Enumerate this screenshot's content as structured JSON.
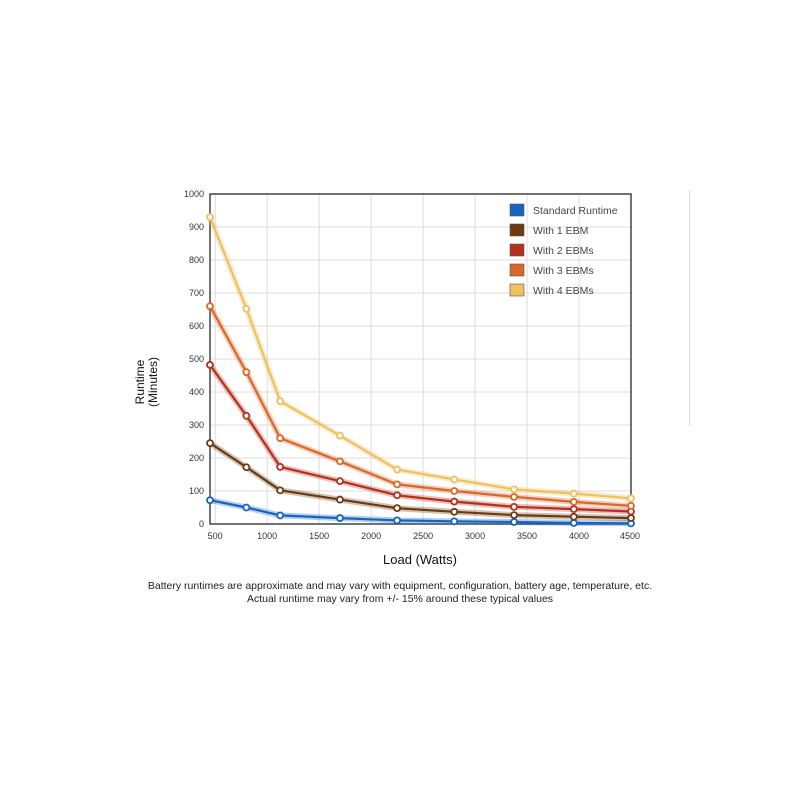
{
  "chart_data": {
    "type": "line",
    "title": "",
    "xlabel": "Load (Watts)",
    "ylabel_lines": [
      "Runtime",
      "(Minutes)"
    ],
    "xlim": [
      450,
      4500
    ],
    "ylim": [
      0,
      1000
    ],
    "x_ticks": [
      500,
      1000,
      1500,
      2000,
      2500,
      3000,
      3500,
      4000,
      4500
    ],
    "y_ticks": [
      0,
      100,
      200,
      300,
      400,
      500,
      600,
      700,
      800,
      900,
      1000
    ],
    "grid": true,
    "legend_position": "top-right",
    "x": [
      450,
      800,
      1125,
      1700,
      2250,
      2800,
      3375,
      3950,
      4500
    ],
    "series": [
      {
        "name": "Standard Runtime",
        "color": "#1565c0",
        "values": [
          72,
          50,
          26,
          18,
          11,
          8,
          6,
          3,
          2
        ]
      },
      {
        "name": "With 1 EBM",
        "color": "#6b3a10",
        "values": [
          245,
          172,
          102,
          74,
          48,
          37,
          27,
          22,
          18
        ]
      },
      {
        "name": "With 2 EBMs",
        "color": "#b5301c",
        "values": [
          482,
          328,
          173,
          130,
          87,
          68,
          52,
          45,
          38
        ]
      },
      {
        "name": "With 3 EBMs",
        "color": "#d9682a",
        "values": [
          660,
          460,
          260,
          190,
          120,
          100,
          82,
          67,
          55
        ]
      },
      {
        "name": "With 4 EBMs",
        "color": "#f0c060",
        "values": [
          930,
          652,
          372,
          268,
          165,
          135,
          105,
          92,
          78
        ]
      }
    ]
  },
  "footnote": {
    "line1": "Battery runtimes are approximate and may vary with equipment, configuration, battery age, temperature, etc.",
    "line2": "Actual runtime may vary from +/- 15% around these typical values"
  }
}
